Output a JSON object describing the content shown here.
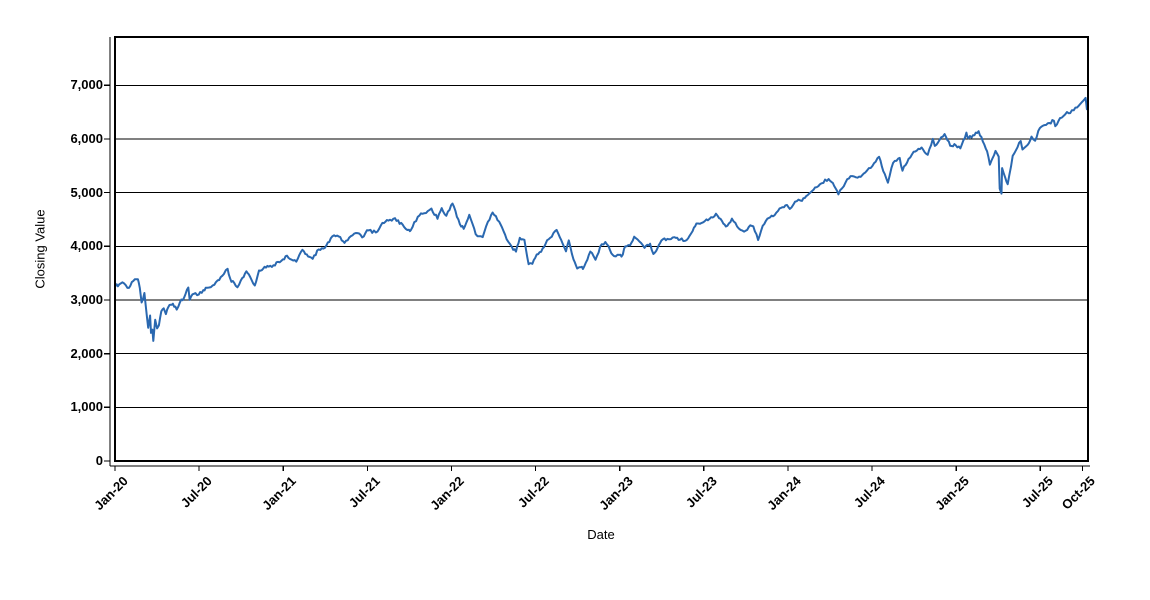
{
  "figure": {
    "background": "#ffffff"
  },
  "chart_data": {
    "type": "line",
    "title": "",
    "xlabel": "Date",
    "ylabel": "Closing Value",
    "x_unit": "months since Jan-2020",
    "xlim": [
      0,
      69.4
    ],
    "ylim": [
      0,
      7900
    ],
    "grid": "horizontal",
    "grid_color": "#000000",
    "legend": "none",
    "line_color": "#2a68b0",
    "line_width": 2,
    "frame_color": "#000000",
    "daily_noise_estimate": 28,
    "x_ticks": [
      {
        "t": 0,
        "label": "Jan-20"
      },
      {
        "t": 6,
        "label": "Jul-20"
      },
      {
        "t": 12,
        "label": "Jan-21"
      },
      {
        "t": 18,
        "label": "Jul-21"
      },
      {
        "t": 24,
        "label": "Jan-22"
      },
      {
        "t": 30,
        "label": "Jul-22"
      },
      {
        "t": 36,
        "label": "Jan-23"
      },
      {
        "t": 42,
        "label": "Jul-23"
      },
      {
        "t": 48,
        "label": "Jan-24"
      },
      {
        "t": 54,
        "label": "Jul-24"
      },
      {
        "t": 60,
        "label": "Jan-25"
      },
      {
        "t": 66,
        "label": "Jul-25"
      },
      {
        "t": 69,
        "label": "Oct-25"
      }
    ],
    "y_ticks": [
      {
        "v": 0,
        "label": "0"
      },
      {
        "v": 1000,
        "label": "1,000"
      },
      {
        "v": 2000,
        "label": "2,000"
      },
      {
        "v": 3000,
        "label": "3,000"
      },
      {
        "v": 4000,
        "label": "4,000"
      },
      {
        "v": 5000,
        "label": "5,000"
      },
      {
        "v": 6000,
        "label": "6,000"
      },
      {
        "v": 7000,
        "label": "7,000"
      }
    ],
    "series": [
      {
        "name": "Closing Value",
        "points": [
          [
            0.03,
            3258
          ],
          [
            0.3,
            3290
          ],
          [
            0.53,
            3330
          ],
          [
            0.77,
            3276
          ],
          [
            1.0,
            3226
          ],
          [
            1.3,
            3352
          ],
          [
            1.63,
            3386
          ],
          [
            1.77,
            3226
          ],
          [
            1.9,
            2954
          ],
          [
            2.1,
            3130
          ],
          [
            2.2,
            2882
          ],
          [
            2.37,
            2481
          ],
          [
            2.5,
            2711
          ],
          [
            2.57,
            2386
          ],
          [
            2.67,
            2447
          ],
          [
            2.73,
            2237
          ],
          [
            2.8,
            2447
          ],
          [
            2.87,
            2630
          ],
          [
            3.0,
            2470
          ],
          [
            3.13,
            2526
          ],
          [
            3.3,
            2790
          ],
          [
            3.47,
            2846
          ],
          [
            3.63,
            2737
          ],
          [
            3.8,
            2868
          ],
          [
            3.97,
            2912
          ],
          [
            4.13,
            2930
          ],
          [
            4.4,
            2820
          ],
          [
            4.63,
            2955
          ],
          [
            4.93,
            3044
          ],
          [
            5.23,
            3232
          ],
          [
            5.33,
            3002
          ],
          [
            5.63,
            3115
          ],
          [
            5.97,
            3100
          ],
          [
            6.3,
            3185
          ],
          [
            6.47,
            3227
          ],
          [
            6.97,
            3271
          ],
          [
            7.43,
            3373
          ],
          [
            7.77,
            3485
          ],
          [
            8.03,
            3581
          ],
          [
            8.3,
            3339
          ],
          [
            8.5,
            3319
          ],
          [
            8.73,
            3237
          ],
          [
            8.97,
            3363
          ],
          [
            9.37,
            3534
          ],
          [
            9.63,
            3435
          ],
          [
            9.97,
            3270
          ],
          [
            10.27,
            3550
          ],
          [
            10.57,
            3585
          ],
          [
            10.97,
            3622
          ],
          [
            11.3,
            3647
          ],
          [
            11.63,
            3709
          ],
          [
            11.97,
            3756
          ],
          [
            12.27,
            3825
          ],
          [
            12.6,
            3750
          ],
          [
            12.93,
            3714
          ],
          [
            13.37,
            3935
          ],
          [
            13.77,
            3811
          ],
          [
            14.1,
            3768
          ],
          [
            14.53,
            3943
          ],
          [
            14.97,
            3973
          ],
          [
            15.5,
            4185
          ],
          [
            15.97,
            4181
          ],
          [
            16.37,
            4063
          ],
          [
            16.93,
            4204
          ],
          [
            17.3,
            4247
          ],
          [
            17.63,
            4166
          ],
          [
            17.97,
            4298
          ],
          [
            18.6,
            4258
          ],
          [
            18.97,
            4395
          ],
          [
            19.5,
            4480
          ],
          [
            19.97,
            4523
          ],
          [
            20.63,
            4358
          ],
          [
            20.97,
            4308
          ],
          [
            21.1,
            4300
          ],
          [
            21.6,
            4550
          ],
          [
            21.93,
            4605
          ],
          [
            22.57,
            4705
          ],
          [
            23.0,
            4513
          ],
          [
            23.3,
            4712
          ],
          [
            23.63,
            4568
          ],
          [
            23.97,
            4766
          ],
          [
            24.07,
            4797
          ],
          [
            24.6,
            4410
          ],
          [
            24.87,
            4327
          ],
          [
            25.27,
            4587
          ],
          [
            25.73,
            4226
          ],
          [
            26.23,
            4171
          ],
          [
            26.6,
            4456
          ],
          [
            26.93,
            4631
          ],
          [
            27.4,
            4459
          ],
          [
            27.93,
            4132
          ],
          [
            28.3,
            3991
          ],
          [
            28.6,
            3901
          ],
          [
            28.87,
            4158
          ],
          [
            29.2,
            4122
          ],
          [
            29.5,
            3667
          ],
          [
            29.77,
            3675
          ],
          [
            29.97,
            3785
          ],
          [
            30.5,
            3960
          ],
          [
            30.93,
            4130
          ],
          [
            31.5,
            4305
          ],
          [
            32.17,
            3908
          ],
          [
            32.37,
            4110
          ],
          [
            32.7,
            3757
          ],
          [
            32.97,
            3586
          ],
          [
            33.23,
            3612
          ],
          [
            33.37,
            3577
          ],
          [
            33.9,
            3901
          ],
          [
            34.27,
            3748
          ],
          [
            34.6,
            3992
          ],
          [
            34.97,
            4080
          ],
          [
            35.3,
            3934
          ],
          [
            35.6,
            3817
          ],
          [
            35.97,
            3840
          ],
          [
            36.13,
            3808
          ],
          [
            36.4,
            3999
          ],
          [
            36.73,
            4016
          ],
          [
            37.03,
            4180
          ],
          [
            37.4,
            4090
          ],
          [
            37.77,
            3970
          ],
          [
            38.17,
            4048
          ],
          [
            38.4,
            3856
          ],
          [
            38.7,
            3971
          ],
          [
            38.97,
            4109
          ],
          [
            39.4,
            4138
          ],
          [
            39.9,
            4169
          ],
          [
            40.3,
            4124
          ],
          [
            40.77,
            4115
          ],
          [
            41.2,
            4284
          ],
          [
            41.47,
            4426
          ],
          [
            41.97,
            4450
          ],
          [
            42.4,
            4510
          ],
          [
            42.87,
            4607
          ],
          [
            43.3,
            4468
          ],
          [
            43.57,
            4370
          ],
          [
            44.0,
            4516
          ],
          [
            44.5,
            4330
          ],
          [
            44.87,
            4275
          ],
          [
            45.2,
            4358
          ],
          [
            45.53,
            4373
          ],
          [
            45.87,
            4117
          ],
          [
            46.2,
            4383
          ],
          [
            46.53,
            4514
          ],
          [
            46.93,
            4560
          ],
          [
            47.4,
            4707
          ],
          [
            47.93,
            4770
          ],
          [
            48.13,
            4697
          ],
          [
            48.63,
            4840
          ],
          [
            49.0,
            4846
          ],
          [
            49.4,
            4953
          ],
          [
            49.93,
            5096
          ],
          [
            50.4,
            5175
          ],
          [
            50.9,
            5254
          ],
          [
            51.3,
            5123
          ],
          [
            51.6,
            4967
          ],
          [
            52.1,
            5188
          ],
          [
            52.47,
            5308
          ],
          [
            52.97,
            5278
          ],
          [
            53.4,
            5354
          ],
          [
            53.9,
            5460
          ],
          [
            54.5,
            5667
          ],
          [
            54.8,
            5399
          ],
          [
            55.13,
            5186
          ],
          [
            55.5,
            5554
          ],
          [
            55.97,
            5648
          ],
          [
            56.17,
            5408
          ],
          [
            56.6,
            5626
          ],
          [
            56.97,
            5762
          ],
          [
            57.53,
            5841
          ],
          [
            57.97,
            5705
          ],
          [
            58.33,
            6001
          ],
          [
            58.47,
            5871
          ],
          [
            58.93,
            6032
          ],
          [
            59.17,
            6090
          ],
          [
            59.57,
            5872
          ],
          [
            59.97,
            5882
          ],
          [
            60.3,
            5827
          ],
          [
            60.73,
            6119
          ],
          [
            60.87,
            6012
          ],
          [
            61.2,
            6071
          ],
          [
            61.6,
            6144
          ],
          [
            61.9,
            5955
          ],
          [
            62.2,
            5770
          ],
          [
            62.4,
            5521
          ],
          [
            62.8,
            5777
          ],
          [
            63.03,
            5671
          ],
          [
            63.1,
            5074
          ],
          [
            63.23,
            4983
          ],
          [
            63.27,
            5457
          ],
          [
            63.5,
            5276
          ],
          [
            63.67,
            5158
          ],
          [
            64.03,
            5687
          ],
          [
            64.37,
            5844
          ],
          [
            64.6,
            5963
          ],
          [
            64.73,
            5803
          ],
          [
            65.1,
            5892
          ],
          [
            65.37,
            6045
          ],
          [
            65.63,
            5968
          ],
          [
            65.97,
            6205
          ],
          [
            66.3,
            6259
          ],
          [
            66.63,
            6297
          ],
          [
            66.97,
            6339
          ],
          [
            67.07,
            6238
          ],
          [
            67.4,
            6389
          ],
          [
            67.9,
            6502
          ],
          [
            68.13,
            6482
          ],
          [
            68.5,
            6584
          ],
          [
            68.97,
            6688
          ],
          [
            69.15,
            6740
          ],
          [
            69.23,
            6765
          ],
          [
            69.32,
            6552
          ],
          [
            69.4,
            6654
          ]
        ]
      }
    ]
  }
}
